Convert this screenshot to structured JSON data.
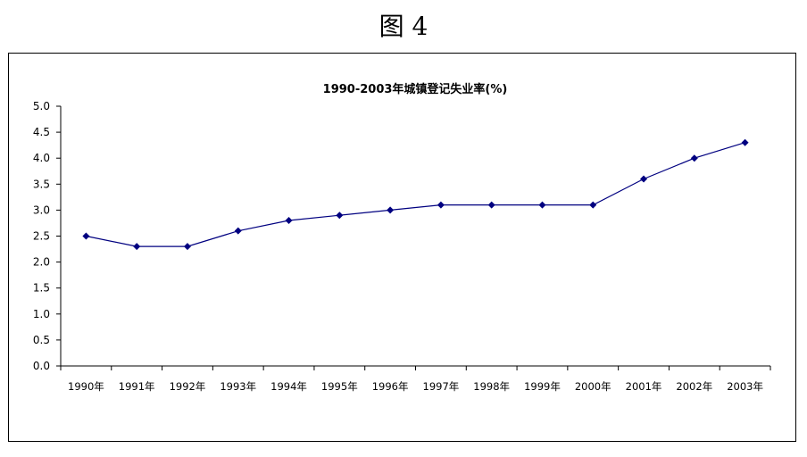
{
  "figure_label": "图 4",
  "colors": {
    "line": "#000080",
    "marker": "#000080",
    "axis": "#000000",
    "text": "#000000"
  },
  "chart_data": {
    "type": "line",
    "title": "1990-2003年城镇登记失业率(%)",
    "xlabel": "",
    "ylabel": "",
    "categories": [
      "1990年",
      "1991年",
      "1992年",
      "1993年",
      "1994年",
      "1995年",
      "1996年",
      "1997年",
      "1998年",
      "1999年",
      "2000年",
      "2001年",
      "2002年",
      "2003年"
    ],
    "series": [
      {
        "values": [
          2.5,
          2.3,
          2.3,
          2.6,
          2.8,
          2.9,
          3.0,
          3.1,
          3.1,
          3.1,
          3.1,
          3.6,
          4.0,
          4.3
        ]
      }
    ],
    "ylim": [
      0,
      5
    ],
    "yticks": [
      "0.0",
      "0.5",
      "1.0",
      "1.5",
      "2.0",
      "2.5",
      "3.0",
      "3.5",
      "4.0",
      "4.5",
      "5.0"
    ],
    "grid": false,
    "legend": "none"
  }
}
